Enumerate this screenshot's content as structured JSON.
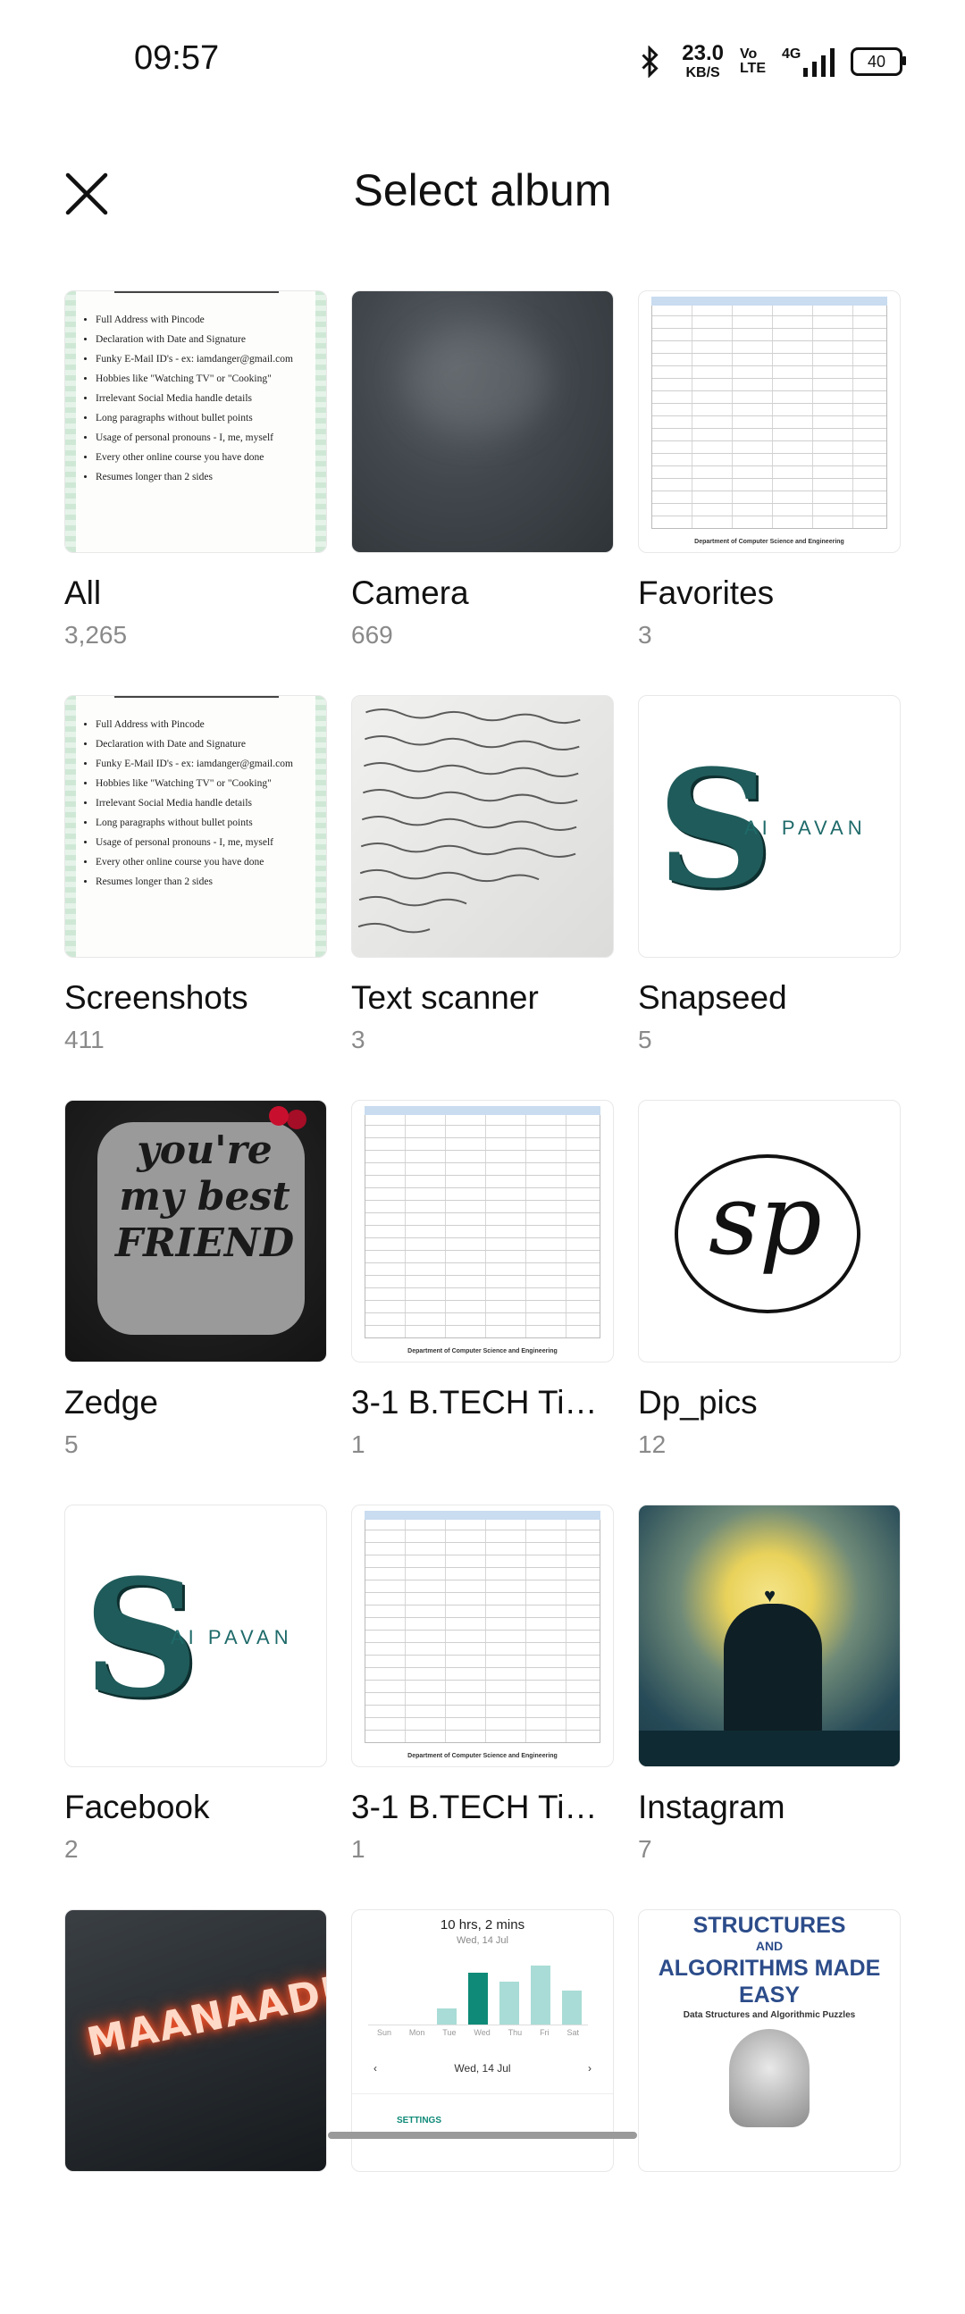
{
  "status_bar": {
    "time": "09:57",
    "net_speed_value": "23.0",
    "net_speed_unit": "KB/S",
    "volte_top": "Vo",
    "volte_bottom": "LTE",
    "network": "4G",
    "battery": "40"
  },
  "header": {
    "title": "Select album"
  },
  "albums": [
    {
      "name": "All",
      "count": "3,265"
    },
    {
      "name": "Camera",
      "count": "669"
    },
    {
      "name": "Favorites",
      "count": "3"
    },
    {
      "name": "Screenshots",
      "count": "411"
    },
    {
      "name": "Text scanner",
      "count": "3"
    },
    {
      "name": "Snapseed",
      "count": "5"
    },
    {
      "name": "Zedge",
      "count": "5"
    },
    {
      "name": "3-1 B.TECH Tim…",
      "count": "1"
    },
    {
      "name": "Dp_pics",
      "count": "12"
    },
    {
      "name": "Facebook",
      "count": "2"
    },
    {
      "name": "3-1 B.TECH Tim…",
      "count": "1"
    },
    {
      "name": "Instagram",
      "count": "7"
    }
  ],
  "thumb_text": {
    "resume_points": [
      "Full Address with Pincode",
      "Declaration with Date and Signature",
      "Funky E-Mail ID's - ex: iamdanger@gmail.com",
      "Hobbies like \"Watching TV\" or \"Cooking\"",
      "Irrelevant Social Media handle details",
      "Long paragraphs without bullet points",
      "Usage of personal pronouns - I, me, myself",
      "Every other online course you have done",
      "Resumes longer than 2 sides"
    ],
    "dept_footer": "Department of Computer Science and Engineering",
    "logo_text": "AI PAVAN",
    "zedge_words": "you're my best FRIEND",
    "sp_text": "sp",
    "neon_text": "MAANAADU",
    "usage_title": "10 hrs, 2 mins",
    "usage_sub": "Wed, 14 Jul",
    "usage_days": [
      "Sun",
      "Mon",
      "Tue",
      "Wed",
      "Thu",
      "Fri",
      "Sat"
    ],
    "usage_date": "Wed, 14 Jul",
    "usage_settings": "SETTINGS",
    "book_line1": "STRUCTURES",
    "book_line2": "AND",
    "book_line3": "ALGORITHMS MADE EASY",
    "book_line4": "Data Structures and Algorithmic Puzzles"
  }
}
